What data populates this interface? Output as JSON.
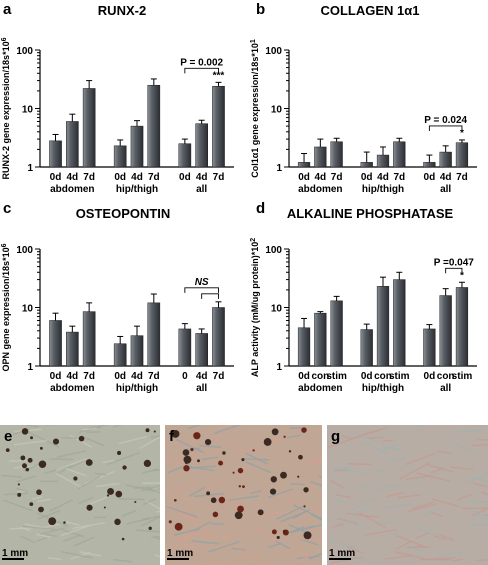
{
  "colors": {
    "bar_light": "#8a8f96",
    "bar_dark": "#2b2e33",
    "axis": "#000000",
    "micro_e": "#b3b6a6",
    "micro_f": "#c0a694",
    "micro_g": "#b8ada4",
    "spot_dark": "#3a2a22",
    "spot_red": "#6a2418"
  },
  "chart_data": [
    {
      "type": "bar",
      "letter": "a",
      "title": "RUNX-2",
      "ylabel": "RUNX-2 gene expression/18s*10",
      "ylabel_exp": "6",
      "yscale": "log",
      "ylim": [
        1,
        100
      ],
      "yticks": [
        "1",
        "10",
        "100"
      ],
      "categories": [
        "0d",
        "4d",
        "7d",
        "0d",
        "4d",
        "7d",
        "0d",
        "4d",
        "7d"
      ],
      "groups": [
        "abdomen",
        "hip/thigh",
        "all"
      ],
      "values": [
        2.8,
        6.0,
        22.0,
        2.3,
        5.0,
        25.0,
        2.5,
        5.5,
        24.0
      ],
      "errors": [
        0.8,
        2.0,
        8.0,
        0.6,
        1.2,
        7.0,
        0.5,
        0.8,
        4.0
      ],
      "annotations": [
        {
          "text": "P = 0.002",
          "from": 6,
          "to": 8
        },
        {
          "text": "***",
          "bar": 8
        }
      ]
    },
    {
      "type": "bar",
      "letter": "b",
      "title": "COLLAGEN 1α1",
      "ylabel": "Col1α1 gene expression/18s*10",
      "ylabel_exp": "1",
      "yscale": "log",
      "ylim": [
        1,
        100
      ],
      "yticks": [
        "1",
        "10",
        "100"
      ],
      "categories": [
        "0d",
        "4d",
        "7d",
        "0d",
        "4d",
        "7d",
        "0d",
        "4d",
        "7d"
      ],
      "groups": [
        "abdomen",
        "hip/thigh",
        "all"
      ],
      "values": [
        1.2,
        2.2,
        2.7,
        1.2,
        1.6,
        2.7,
        1.2,
        1.8,
        2.6
      ],
      "errors": [
        0.5,
        0.8,
        0.4,
        0.6,
        0.6,
        0.4,
        0.4,
        0.5,
        0.3
      ],
      "annotations": [
        {
          "text": "P = 0.024",
          "from": 6,
          "to": 8
        },
        {
          "text": "*",
          "bar": 8
        }
      ]
    },
    {
      "type": "bar",
      "letter": "c",
      "title": "OSTEOPONTIN",
      "ylabel": "OPN gene expression/18s*10",
      "ylabel_exp": "6",
      "yscale": "log",
      "ylim": [
        1,
        100
      ],
      "yticks": [
        "1",
        "10",
        "100"
      ],
      "categories": [
        "0d",
        "4d",
        "7d",
        "0d",
        "4d",
        "7d",
        "0",
        "4d",
        "7d"
      ],
      "groups": [
        "abdomen",
        "hip/thigh",
        "all"
      ],
      "values": [
        6.0,
        3.8,
        8.5,
        2.4,
        3.3,
        12.0,
        4.3,
        3.6,
        10.0
      ],
      "errors": [
        2.0,
        1.0,
        3.5,
        0.8,
        1.5,
        5.0,
        1.0,
        0.7,
        2.5
      ],
      "annotations": [
        {
          "text": "NS",
          "from": 6,
          "to": 8,
          "italic": true
        },
        {
          "text": "",
          "from": 7,
          "to": 8
        }
      ]
    },
    {
      "type": "bar",
      "letter": "d",
      "title": "ALKALINE PHOSPHATASE",
      "ylabel": "ALP activity (mM/ug protein)*10",
      "ylabel_exp": "2",
      "yscale": "log",
      "ylim": [
        1,
        100
      ],
      "yticks": [
        "1",
        "10",
        "100"
      ],
      "categories": [
        "0d",
        "con",
        "stim",
        "0d",
        "con",
        "stim",
        "0d",
        "con",
        "stim"
      ],
      "groups": [
        "abdomen",
        "hip/thigh",
        "all"
      ],
      "values": [
        4.5,
        8.0,
        13.0,
        4.2,
        23.0,
        30.0,
        4.3,
        16.0,
        22.0
      ],
      "errors": [
        2.0,
        0.5,
        2.5,
        1.0,
        10.0,
        10.0,
        0.8,
        5.0,
        5.0
      ],
      "annotations": [
        {
          "text": "P =0.047",
          "from": 7,
          "to": 8
        },
        {
          "text": "*",
          "bar": 8
        }
      ]
    }
  ],
  "micrographs": [
    {
      "letter": "e",
      "scale": "1 mm"
    },
    {
      "letter": "f",
      "scale": "1 mm"
    },
    {
      "letter": "g",
      "scale": "1 mm"
    }
  ]
}
